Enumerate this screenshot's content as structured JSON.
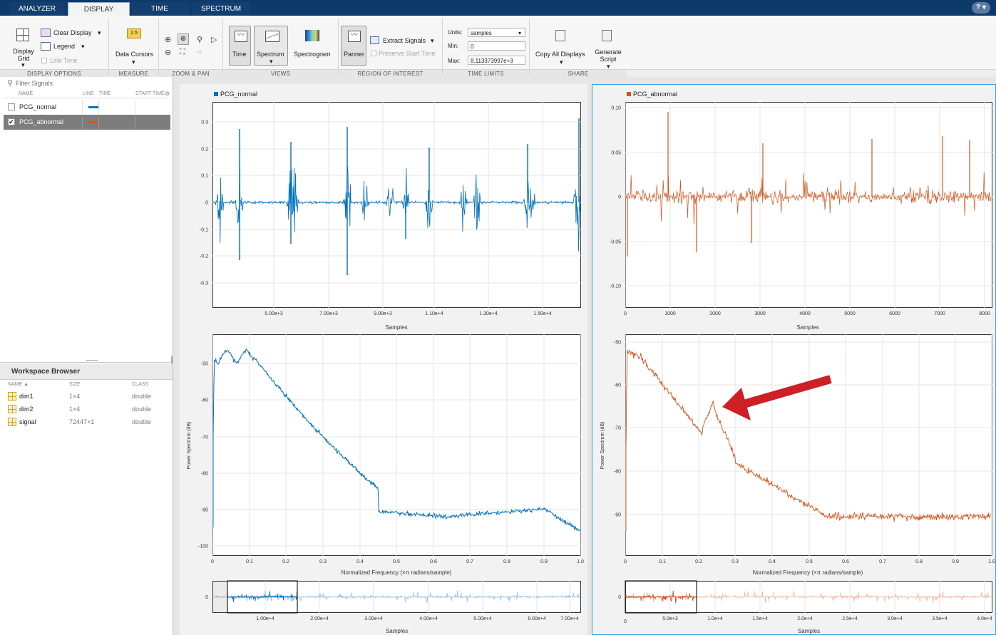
{
  "tabs": {
    "analyzer": "ANALYZER",
    "display": "DISPLAY",
    "time": "TIME",
    "spectrum": "SPECTRUM"
  },
  "help_label": "?",
  "ribbon": {
    "display_grid": "Display Grid",
    "clear_display": "Clear Display",
    "legend": "Legend",
    "link_time": "Link Time",
    "data_cursors": "Data Cursors",
    "data_cursor_badge": "2.5",
    "time": "Time",
    "spectrum": "Spectrum",
    "spectrogram": "Spectrogram",
    "panner": "Panner",
    "extract_signals": "Extract Signals",
    "preserve_start_time": "Preserve Start Time",
    "units_label": "Units:",
    "units_value": "samples",
    "min_label": "Min:",
    "min_value": "0",
    "max_label": "Max:",
    "max_value": "8.113373997e+3",
    "copy_all_displays": "Copy All Displays",
    "generate_script": "Generate Script",
    "sections": {
      "display_options": "DISPLAY OPTIONS",
      "measure": "MEASURE",
      "zoom_pan": "ZOOM & PAN",
      "views": "VIEWS",
      "roi": "REGION OF INTEREST",
      "time_limits": "TIME LIMITS",
      "share": "SHARE"
    }
  },
  "signals": {
    "filter_placeholder": "Filter Signals",
    "headers": {
      "name": "NAME",
      "line": "LINE",
      "time": "TIME",
      "start_time": "START TIME"
    },
    "items": [
      {
        "name": "PCG_normal",
        "checked": false,
        "color": "#0072bd"
      },
      {
        "name": "PCG_abnormal",
        "checked": true,
        "color": "#d95319"
      }
    ]
  },
  "workspace": {
    "title": "Workspace Browser",
    "headers": {
      "name": "NAME ▲",
      "size": "SIZE",
      "class": "CLASS"
    },
    "items": [
      {
        "name": "dim1",
        "size": "1×4",
        "class": "double"
      },
      {
        "name": "dim2",
        "size": "1×4",
        "class": "double"
      },
      {
        "name": "signal",
        "size": "72447×1",
        "class": "double"
      }
    ]
  },
  "colors": {
    "normal": "#0072bd",
    "abnormal": "#d95319",
    "selected_border": "#3aa0e0",
    "arrow": "#cc1f26"
  },
  "left_display": {
    "legend": "PCG_normal",
    "time_plot": {
      "yticks": [
        "0.3",
        "0.2",
        "0.1",
        "0",
        "-0.1",
        "-0.2",
        "-0.3"
      ],
      "xticks": [
        "5.00e+3",
        "7.00e+3",
        "9.00e+3",
        "1.10e+4",
        "1.30e+4",
        "1.50e+4"
      ],
      "xlabel": "Samples"
    },
    "spectrum_plot": {
      "yticks": [
        "-50",
        "-60",
        "-70",
        "-80",
        "-90",
        "-100"
      ],
      "xticks": [
        "0",
        "0.1",
        "0.2",
        "0.3",
        "0.4",
        "0.5",
        "0.6",
        "0.7",
        "0.8",
        "0.9",
        "1.0"
      ],
      "xlabel": "Normalized Frequency (×π radians/sample)",
      "ylabel": "Power Spectrum (dB)"
    },
    "panner": {
      "ytick": "0",
      "xticks": [
        "1.00e+4",
        "2.00e+4",
        "3.00e+4",
        "4.00e+4",
        "5.00e+4",
        "6.00e+4",
        "7.00e+4"
      ],
      "xlabel": "Samples"
    }
  },
  "right_display": {
    "legend": "PCG_abnormal",
    "time_plot": {
      "yticks": [
        "0.10",
        "0.05",
        "0",
        "-0.05",
        "-0.10"
      ],
      "xticks": [
        "0",
        "1000",
        "2000",
        "3000",
        "4000",
        "5000",
        "6000",
        "7000",
        "8000"
      ],
      "xlabel": "Samples"
    },
    "spectrum_plot": {
      "yticks": [
        "-50",
        "-60",
        "-70",
        "-80",
        "-90"
      ],
      "xticks": [
        "0",
        "0.1",
        "0.2",
        "0.3",
        "0.4",
        "0.5",
        "0.6",
        "0.7",
        "0.8",
        "0.9",
        "1.0"
      ],
      "xlabel": "Normalized Frequency (×π radians/sample)",
      "ylabel": "Power Spectrum (dB)"
    },
    "panner": {
      "ytick": "0",
      "xticks": [
        "0",
        "5.0e+3",
        "1.0e+4",
        "1.5e+4",
        "2.0e+4",
        "2.5e+4",
        "3.0e+4",
        "3.5e+4",
        "4.0e+4"
      ],
      "xlabel": "Samples"
    }
  }
}
